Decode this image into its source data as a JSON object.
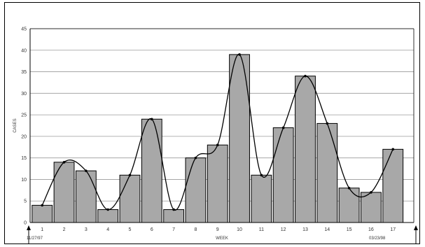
{
  "chart_data": {
    "type": "bar",
    "overlay": "smoothed-line",
    "categories": [
      "1",
      "2",
      "3",
      "4",
      "5",
      "6",
      "7",
      "8",
      "9",
      "10",
      "11",
      "12",
      "13",
      "14",
      "15",
      "16",
      "17"
    ],
    "values": [
      4,
      14,
      12,
      3,
      11,
      24,
      3,
      15,
      18,
      39,
      11,
      22,
      34,
      23,
      8,
      7,
      17
    ],
    "xlabel": "WEEK",
    "ylabel": "CASES",
    "ylim": [
      0,
      45
    ],
    "yticks": [
      0,
      5,
      10,
      15,
      20,
      25,
      30,
      35,
      40,
      45
    ],
    "grid": true,
    "colors": {
      "bar": "#a8a8a8",
      "bar_stroke": "#000000",
      "line": "#000000",
      "grid": "#9a9a9a"
    },
    "annotations": {
      "start_date": "11/27/97",
      "end_date": "03/23/98"
    }
  }
}
